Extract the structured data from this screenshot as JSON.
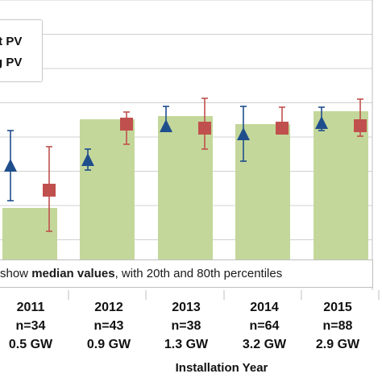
{
  "chart_data": {
    "type": "bar",
    "categories": [
      "2011",
      "2012",
      "2013",
      "2014",
      "2015"
    ],
    "category_details": [
      {
        "year": "2011",
        "n": "n=34",
        "capacity": "0.5 GW"
      },
      {
        "year": "2012",
        "n": "n=43",
        "capacity": "0.9 GW"
      },
      {
        "year": "2013",
        "n": "n=38",
        "capacity": "1.3 GW"
      },
      {
        "year": "2014",
        "n": "n=64",
        "capacity": "3.2 GW"
      },
      {
        "year": "2015",
        "n": "n=88",
        "capacity": "2.9 GW"
      }
    ],
    "xlabel": "Installation Year",
    "ylim": [
      0,
      340
    ],
    "grid": true,
    "bars": {
      "color": "#c4d79b",
      "values": [
        82,
        192,
        196,
        186,
        202
      ]
    },
    "series": [
      {
        "name": "lt PV",
        "marker": "triangle",
        "color": "#1f4e8c",
        "values": [
          135,
          142,
          184,
          174,
          188
        ],
        "lower": [
          91,
          129,
          178,
          140,
          178
        ],
        "upper": [
          178,
          155,
          208,
          208,
          207
        ]
      },
      {
        "name": "g PV",
        "marker": "square",
        "color": "#c0504d",
        "values": [
          104,
          186,
          181,
          181,
          184
        ],
        "lower": [
          53,
          161,
          155,
          175,
          171
        ],
        "upper": [
          158,
          201,
          218,
          207,
          217
        ]
      }
    ],
    "legend": {
      "placement": "top-left",
      "items": [
        "lt PV",
        "g PV"
      ]
    },
    "note": {
      "prefix": "show ",
      "emphasis": "median values",
      "suffix": ", with 20th and 80th percentiles"
    }
  }
}
